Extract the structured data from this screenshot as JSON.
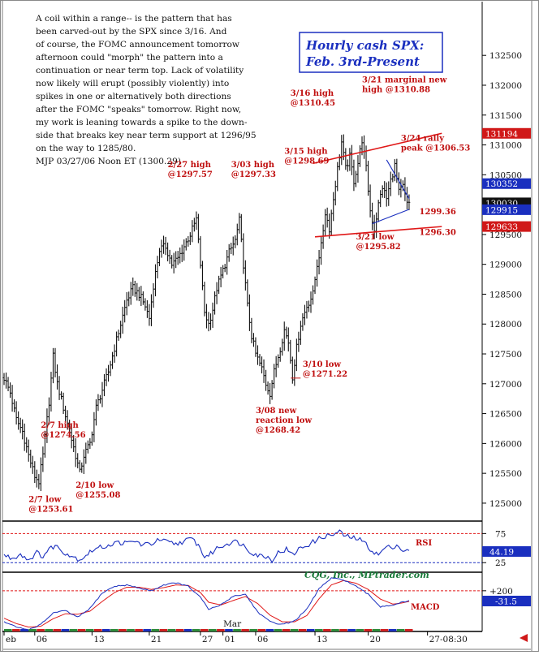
{
  "chart_data": {
    "type": "bar",
    "subtype": "hourly OHLC bar chart with RSI and MACD sub-panels",
    "title": [
      "Hourly cash SPX:",
      "Feb. 3rd-Present"
    ],
    "commentary": [
      "A coil within a range-- is the pattern that has",
      "been carved-out by the SPX since 3/16. And",
      "of course, the FOMC announcement tomorrow",
      "afternoon could \"morph\" the pattern into a",
      "continuation or near term top. Lack of volatility",
      "now likely will erupt (possibly violently) into",
      "spikes in one or alternatively both directions",
      "after the FOMC \"speaks\" tomorrow. Right now,",
      "my work is leaning towards a spike to the down-",
      "side that breaks key near term support at 1296/95",
      "on the way to 1285/80.",
      "MJP 03/27/06 Noon ET  (1300.29)"
    ],
    "price_axis": {
      "ylim": [
        1247.0,
        1334.0
      ],
      "ticks": [
        "125000",
        "125500",
        "126000",
        "126500",
        "127000",
        "127500",
        "128000",
        "128500",
        "129000",
        "129500",
        "130000",
        "130500",
        "131000",
        "131500",
        "132000",
        "132500"
      ]
    },
    "price_markers": [
      {
        "value": 1311.94,
        "label": "131194",
        "color": "#d01818",
        "text_color": "#ffffff"
      },
      {
        "value": 1303.52,
        "label": "130352",
        "color": "#1a2fbf",
        "text_color": "#ffffff"
      },
      {
        "value": 1300.3,
        "label": "130030",
        "color": "#111111",
        "text_color": "#ffffff"
      },
      {
        "value": 1299.15,
        "label": "129915",
        "color": "#1a2fbf",
        "text_color": "#ffffff"
      },
      {
        "value": 1296.33,
        "label": "129633",
        "color": "#d01818",
        "text_color": "#ffffff"
      }
    ],
    "x_axis": {
      "bars_total": 199,
      "tick_labels": [
        {
          "bar": 0,
          "label": "eb"
        },
        {
          "bar": 15,
          "label": "06"
        },
        {
          "bar": 43,
          "label": "13"
        },
        {
          "bar": 71,
          "label": "21"
        },
        {
          "bar": 96,
          "label": "27"
        },
        {
          "bar": 107,
          "label": "01"
        },
        {
          "bar": 123,
          "label": "06"
        },
        {
          "bar": 152,
          "label": "13"
        },
        {
          "bar": 178,
          "label": "20"
        },
        {
          "bar": 207,
          "label": "27-08:30"
        }
      ],
      "month_label": {
        "bar": 108,
        "label": "Mar"
      }
    },
    "price_anchors": [
      [
        0,
        1271.0
      ],
      [
        3,
        1268.5
      ],
      [
        6,
        1264.0
      ],
      [
        9,
        1262.0
      ],
      [
        12,
        1258.0
      ],
      [
        15,
        1254.5
      ],
      [
        17,
        1253.6
      ],
      [
        19,
        1258.0
      ],
      [
        22,
        1267.0
      ],
      [
        24,
        1274.56
      ],
      [
        26,
        1270.0
      ],
      [
        29,
        1266.0
      ],
      [
        32,
        1262.0
      ],
      [
        35,
        1258.0
      ],
      [
        37,
        1255.08
      ],
      [
        39,
        1258.0
      ],
      [
        42,
        1260.0
      ],
      [
        45,
        1266.0
      ],
      [
        48,
        1269.0
      ],
      [
        51,
        1272.0
      ],
      [
        54,
        1276.0
      ],
      [
        57,
        1280.0
      ],
      [
        60,
        1284.0
      ],
      [
        63,
        1286.0
      ],
      [
        66,
        1285.0
      ],
      [
        69,
        1283.0
      ],
      [
        71,
        1281.0
      ],
      [
        73,
        1286.5
      ],
      [
        76,
        1292.5
      ],
      [
        79,
        1293.0
      ],
      [
        82,
        1290.0
      ],
      [
        85,
        1291.0
      ],
      [
        88,
        1293.0
      ],
      [
        91,
        1295.0
      ],
      [
        94,
        1297.57
      ],
      [
        96,
        1290.0
      ],
      [
        98,
        1282.0
      ],
      [
        100,
        1280.0
      ],
      [
        102,
        1282.5
      ],
      [
        104,
        1286.0
      ],
      [
        107,
        1289.0
      ],
      [
        110,
        1292.0
      ],
      [
        113,
        1294.0
      ],
      [
        115,
        1297.33
      ],
      [
        117,
        1290.0
      ],
      [
        119,
        1283.0
      ],
      [
        121,
        1278.0
      ],
      [
        123,
        1275.0
      ],
      [
        126,
        1272.5
      ],
      [
        128,
        1270.0
      ],
      [
        130,
        1268.42
      ],
      [
        132,
        1272.0
      ],
      [
        135,
        1276.0
      ],
      [
        137,
        1279.0
      ],
      [
        139,
        1277.0
      ],
      [
        141,
        1271.22
      ],
      [
        143,
        1276.0
      ],
      [
        145,
        1280.0
      ],
      [
        148,
        1283.0
      ],
      [
        151,
        1285.0
      ],
      [
        153,
        1290.0
      ],
      [
        155,
        1293.0
      ],
      [
        157,
        1298.69
      ],
      [
        159,
        1296.0
      ],
      [
        161,
        1301.0
      ],
      [
        163,
        1306.0
      ],
      [
        165,
        1310.45
      ],
      [
        167,
        1306.0
      ],
      [
        169,
        1308.0
      ],
      [
        171,
        1304.0
      ],
      [
        173,
        1307.0
      ],
      [
        175,
        1310.88
      ],
      [
        177,
        1306.0
      ],
      [
        179,
        1299.0
      ],
      [
        181,
        1295.82
      ],
      [
        183,
        1300.0
      ],
      [
        185,
        1303.0
      ],
      [
        187,
        1301.0
      ],
      [
        189,
        1304.0
      ],
      [
        191,
        1306.53
      ],
      [
        193,
        1302.0
      ],
      [
        195,
        1303.0
      ],
      [
        197,
        1300.0
      ],
      [
        198,
        1300.29
      ]
    ],
    "trendlines": [
      {
        "name": "resistance",
        "color": "#e01818",
        "from": [
          151,
          1306.9
        ],
        "to": [
          214,
          1311.94
        ]
      },
      {
        "name": "support",
        "color": "#e01818",
        "from": [
          152,
          1294.6
        ],
        "to": [
          214,
          1296.33
        ]
      },
      {
        "name": "coil-upper",
        "color": "#1a2fbf",
        "from": [
          187,
          1307.5
        ],
        "to": [
          198,
          1301.0
        ]
      },
      {
        "name": "coil-lower",
        "color": "#1a2fbf",
        "from": [
          180,
          1296.8
        ],
        "to": [
          198,
          1299.2
        ]
      }
    ],
    "annotations": [
      {
        "bar": 18,
        "price": 1262.6,
        "lines": [
          "2/7 high",
          "@1274.56"
        ],
        "align": "start"
      },
      {
        "bar": 12,
        "price": 1250.2,
        "lines": [
          "2/7 low",
          "@1253.61"
        ],
        "align": "start"
      },
      {
        "bar": 35,
        "price": 1252.6,
        "lines": [
          "2/10 low",
          "@1255.08"
        ],
        "align": "start"
      },
      {
        "bar": 80,
        "price": 1306.3,
        "lines": [
          "2/27 high",
          "@1297.57"
        ],
        "align": "start"
      },
      {
        "bar": 111,
        "price": 1306.3,
        "lines": [
          "3/03 high",
          "@1297.33"
        ],
        "align": "start"
      },
      {
        "bar": 137,
        "price": 1308.5,
        "lines": [
          "3/15 high",
          "@1298.69"
        ],
        "align": "start"
      },
      {
        "bar": 140,
        "price": 1318.2,
        "lines": [
          "3/16 high",
          "@1310.45"
        ],
        "align": "start"
      },
      {
        "bar": 175,
        "price": 1320.5,
        "lines": [
          "3/21 marginal new",
          "high @1310.88"
        ],
        "align": "start"
      },
      {
        "bar": 194,
        "price": 1310.7,
        "lines": [
          "3/24 rally",
          "peak @1306.53"
        ],
        "align": "start"
      },
      {
        "bar": 203,
        "price": 1298.4,
        "lines": [
          "1299.36"
        ],
        "align": "start"
      },
      {
        "bar": 203,
        "price": 1294.9,
        "lines": [
          "1296.30"
        ],
        "align": "start"
      },
      {
        "bar": 172,
        "price": 1294.2,
        "lines": [
          "3/21 low",
          "@1295.82"
        ],
        "align": "start"
      },
      {
        "bar": 146,
        "price": 1272.8,
        "lines": [
          "3/10 low",
          "@1271.22"
        ],
        "align": "start"
      },
      {
        "bar": 123,
        "price": 1265.1,
        "lines": [
          "3/08 new",
          "reaction low",
          "@1268.42"
        ],
        "align": "start"
      }
    ],
    "rsi": {
      "label": "RSI",
      "ticks": [
        "75",
        "25"
      ],
      "ylim": [
        10,
        95
      ],
      "current": 44.19,
      "current_label": "44.19",
      "current_color": "#1a2fbf",
      "anchors": [
        [
          0,
          38
        ],
        [
          4,
          32
        ],
        [
          8,
          40
        ],
        [
          12,
          30
        ],
        [
          16,
          42
        ],
        [
          19,
          36
        ],
        [
          22,
          48
        ],
        [
          25,
          55
        ],
        [
          28,
          46
        ],
        [
          31,
          40
        ],
        [
          34,
          35
        ],
        [
          37,
          30
        ],
        [
          40,
          38
        ],
        [
          44,
          48
        ],
        [
          48,
          52
        ],
        [
          52,
          56
        ],
        [
          56,
          60
        ],
        [
          60,
          58
        ],
        [
          64,
          62
        ],
        [
          68,
          55
        ],
        [
          72,
          58
        ],
        [
          76,
          64
        ],
        [
          80,
          60
        ],
        [
          84,
          57
        ],
        [
          88,
          62
        ],
        [
          92,
          66
        ],
        [
          95,
          55
        ],
        [
          98,
          35
        ],
        [
          101,
          40
        ],
        [
          104,
          50
        ],
        [
          108,
          56
        ],
        [
          112,
          62
        ],
        [
          116,
          58
        ],
        [
          120,
          45
        ],
        [
          124,
          38
        ],
        [
          128,
          36
        ],
        [
          131,
          30
        ],
        [
          134,
          42
        ],
        [
          138,
          48
        ],
        [
          141,
          38
        ],
        [
          144,
          48
        ],
        [
          148,
          55
        ],
        [
          152,
          62
        ],
        [
          156,
          70
        ],
        [
          160,
          72
        ],
        [
          164,
          78
        ],
        [
          167,
          70
        ],
        [
          170,
          68
        ],
        [
          173,
          66
        ],
        [
          176,
          60
        ],
        [
          180,
          45
        ],
        [
          183,
          38
        ],
        [
          186,
          50
        ],
        [
          189,
          52
        ],
        [
          192,
          55
        ],
        [
          195,
          46
        ],
        [
          198,
          44
        ]
      ]
    },
    "macd": {
      "label": "MACD",
      "ticks": [
        "+200"
      ],
      "ylim": [
        -700,
        600
      ],
      "current": -31.5,
      "current_label": "-31.5",
      "current_color": "#1a2fbf",
      "macd_anchors": [
        [
          0,
          -500
        ],
        [
          6,
          -620
        ],
        [
          12,
          -680
        ],
        [
          18,
          -560
        ],
        [
          24,
          -300
        ],
        [
          30,
          -250
        ],
        [
          36,
          -400
        ],
        [
          42,
          -200
        ],
        [
          48,
          150
        ],
        [
          54,
          300
        ],
        [
          60,
          330
        ],
        [
          66,
          260
        ],
        [
          72,
          200
        ],
        [
          78,
          330
        ],
        [
          84,
          380
        ],
        [
          90,
          300
        ],
        [
          96,
          50
        ],
        [
          100,
          -220
        ],
        [
          106,
          -120
        ],
        [
          112,
          80
        ],
        [
          118,
          120
        ],
        [
          124,
          -280
        ],
        [
          130,
          -500
        ],
        [
          136,
          -560
        ],
        [
          142,
          -480
        ],
        [
          148,
          -220
        ],
        [
          154,
          250
        ],
        [
          160,
          480
        ],
        [
          166,
          450
        ],
        [
          172,
          300
        ],
        [
          178,
          120
        ],
        [
          184,
          -160
        ],
        [
          190,
          -120
        ],
        [
          194,
          -70
        ],
        [
          198,
          -31.5
        ]
      ],
      "signal_anchors": [
        [
          0,
          -420
        ],
        [
          6,
          -540
        ],
        [
          12,
          -620
        ],
        [
          18,
          -600
        ],
        [
          24,
          -430
        ],
        [
          30,
          -320
        ],
        [
          36,
          -330
        ],
        [
          42,
          -260
        ],
        [
          48,
          -40
        ],
        [
          54,
          160
        ],
        [
          60,
          280
        ],
        [
          66,
          280
        ],
        [
          72,
          230
        ],
        [
          78,
          270
        ],
        [
          84,
          330
        ],
        [
          90,
          320
        ],
        [
          96,
          160
        ],
        [
          100,
          -60
        ],
        [
          106,
          -120
        ],
        [
          112,
          -20
        ],
        [
          118,
          70
        ],
        [
          124,
          -90
        ],
        [
          130,
          -350
        ],
        [
          136,
          -500
        ],
        [
          142,
          -500
        ],
        [
          148,
          -360
        ],
        [
          154,
          20
        ],
        [
          160,
          330
        ],
        [
          166,
          430
        ],
        [
          172,
          370
        ],
        [
          178,
          230
        ],
        [
          184,
          10
        ],
        [
          190,
          -100
        ],
        [
          194,
          -80
        ],
        [
          198,
          -40
        ]
      ]
    },
    "watermark": "CQG, Inc., MPtrader.com",
    "colors": {
      "price_bars": "#111111",
      "rsi_line": "#1a2fbf",
      "macd_line": "#1a2fbf",
      "signal_line": "#e01818",
      "annotation": "#c01010",
      "title": "#1a2fbf",
      "title_border": "#1a2fbf",
      "reference_line": "#e01818"
    }
  }
}
